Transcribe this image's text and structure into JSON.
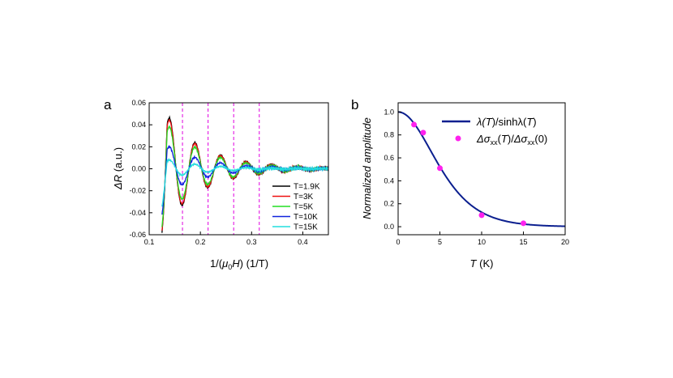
{
  "chart_data": [
    {
      "panel_label": "a",
      "type": "line",
      "xlabel_parts": [
        "1/(",
        "μ",
        "0",
        "H",
        ") (1/T)"
      ],
      "ylabel_parts": [
        "ΔR",
        " (a.u.)"
      ],
      "xlim": [
        0.1,
        0.45
      ],
      "ylim": [
        -0.06,
        0.06
      ],
      "xticks": [
        "0.1",
        "0.2",
        "0.3",
        "0.4"
      ],
      "xtick_values": [
        0.1,
        0.2,
        0.3,
        0.4
      ],
      "yticks": [
        "-0.06",
        "-0.04",
        "-0.02",
        "0.00",
        "0.02",
        "0.04",
        "0.06"
      ],
      "ytick_values": [
        -0.06,
        -0.04,
        -0.02,
        0.0,
        0.02,
        0.04,
        0.06
      ],
      "dashed_markers_x": [
        0.165,
        0.215,
        0.265,
        0.315
      ],
      "marker_color": "#e000e0",
      "series": [
        {
          "name": "T=1.9K",
          "color": "#000000",
          "amplitude": 0.046
        },
        {
          "name": "T=3K",
          "color": "#ee1111",
          "amplitude": 0.044
        },
        {
          "name": "T=5K",
          "color": "#22dd22",
          "amplitude": 0.038
        },
        {
          "name": "T=10K",
          "color": "#1122dd",
          "amplitude": 0.02
        },
        {
          "name": "T=15K",
          "color": "#22dddd",
          "amplitude": 0.008
        }
      ],
      "oscillation": {
        "x_start": 0.125,
        "x_end": 0.45,
        "period_inv_T": 0.05,
        "first_peak_x": 0.14,
        "decay": 6.0
      }
    },
    {
      "panel_label": "b",
      "type": "line+scatter",
      "xlabel_parts": [
        "T",
        " (K)"
      ],
      "ylabel": "Normalized amplitude",
      "xlim": [
        0,
        20
      ],
      "ylim": [
        -0.07,
        1.08
      ],
      "xticks": [
        "0",
        "5",
        "10",
        "15",
        "20"
      ],
      "xtick_values": [
        0,
        5,
        10,
        15,
        20
      ],
      "yticks": [
        "0.0",
        "0.2",
        "0.4",
        "0.6",
        "0.8",
        "1.0"
      ],
      "ytick_values": [
        0.0,
        0.2,
        0.4,
        0.6,
        0.8,
        1.0
      ],
      "curve": {
        "name_parts": [
          "λ(",
          "T",
          ")/sinhλ(",
          "T",
          ")"
        ],
        "color": "#0b1f8f",
        "lambda_per_K": 0.42
      },
      "points": {
        "name_parts": [
          "Δσ",
          "xx",
          "(",
          "T",
          ")/",
          "Δσ",
          "xx",
          "(0)"
        ],
        "color": "#ff22ee",
        "x": [
          1.9,
          3,
          5,
          10,
          15
        ],
        "y": [
          0.89,
          0.82,
          0.51,
          0.1,
          0.03
        ]
      }
    }
  ]
}
